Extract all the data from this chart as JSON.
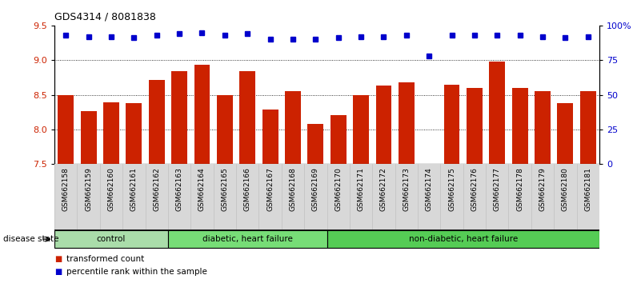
{
  "title": "GDS4314 / 8081838",
  "samples": [
    "GSM662158",
    "GSM662159",
    "GSM662160",
    "GSM662161",
    "GSM662162",
    "GSM662163",
    "GSM662164",
    "GSM662165",
    "GSM662166",
    "GSM662167",
    "GSM662168",
    "GSM662169",
    "GSM662170",
    "GSM662171",
    "GSM662172",
    "GSM662173",
    "GSM662174",
    "GSM662175",
    "GSM662176",
    "GSM662177",
    "GSM662178",
    "GSM662179",
    "GSM662180",
    "GSM662181"
  ],
  "bar_values": [
    8.5,
    8.27,
    8.39,
    8.38,
    8.72,
    8.84,
    8.93,
    8.5,
    8.84,
    8.29,
    8.55,
    8.08,
    8.21,
    8.5,
    8.63,
    8.68,
    7.5,
    8.65,
    8.6,
    8.98,
    8.6,
    8.55,
    8.38,
    8.55
  ],
  "percentile_values": [
    93,
    92,
    92,
    91,
    93,
    94,
    95,
    93,
    94,
    90,
    90,
    90,
    91,
    92,
    92,
    93,
    78,
    93,
    93,
    93,
    93,
    92,
    91,
    92
  ],
  "ylim_left": [
    7.5,
    9.5
  ],
  "ylim_right": [
    0,
    100
  ],
  "yticks_left": [
    7.5,
    8.0,
    8.5,
    9.0,
    9.5
  ],
  "yticks_right": [
    0,
    25,
    50,
    75,
    100
  ],
  "ytick_labels_right": [
    "0",
    "25",
    "50",
    "75",
    "100%"
  ],
  "bar_color": "#cc2200",
  "dot_color": "#0000cc",
  "group_starts": [
    0,
    5,
    12
  ],
  "group_ends": [
    4,
    11,
    23
  ],
  "group_labels": [
    "control",
    "diabetic, heart failure",
    "non-diabetic, heart failure"
  ],
  "group_colors": [
    "#99ee88",
    "#55dd55",
    "#55dd55"
  ],
  "disease_state_label": "disease state",
  "legend_bar_label": "transformed count",
  "legend_dot_label": "percentile rank within the sample",
  "background_color": "#ffffff"
}
